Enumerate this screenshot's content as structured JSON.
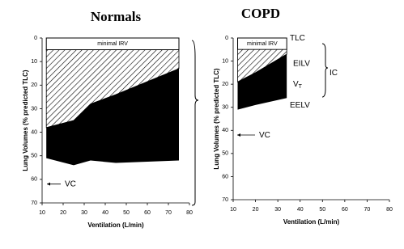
{
  "chart_data": [
    {
      "type": "area",
      "title": "Normals",
      "x_label": "Ventilation (L/min)",
      "y_label": "Lung Volumes (% predicted TLC)",
      "x": [
        12,
        25,
        33,
        45,
        75
      ],
      "series": [
        {
          "values": [
            38,
            35,
            28,
            24,
            13
          ]
        },
        {
          "values": [
            51,
            54,
            52,
            53,
            52
          ]
        }
      ],
      "irv_band": [
        0,
        5
      ],
      "irv_label": "minimal IRV",
      "xlim": [
        10,
        80
      ],
      "xticks": [
        10,
        20,
        30,
        40,
        50,
        60,
        70,
        80
      ],
      "ylim": [
        0,
        70
      ],
      "yticks": [
        0,
        10,
        20,
        30,
        40,
        50,
        60,
        70
      ],
      "y_inverted": true,
      "annotations": [
        {
          "text": "VC",
          "y": 62
        }
      ]
    },
    {
      "type": "area",
      "title": "COPD",
      "x_label": "Ventilation (L/min)",
      "y_label": "Lung Volumes (% predicted TLC)",
      "x": [
        12,
        20,
        34
      ],
      "series": [
        {
          "values": [
            19,
            15,
            7
          ]
        },
        {
          "values": [
            31,
            29,
            26
          ]
        }
      ],
      "irv_band": [
        0,
        5
      ],
      "irv_label": "minimal IRV",
      "xlim": [
        10,
        80
      ],
      "xticks": [
        10,
        20,
        30,
        40,
        50,
        60,
        70,
        80
      ],
      "ylim": [
        0,
        70
      ],
      "yticks": [
        0,
        10,
        20,
        30,
        40,
        50,
        60,
        70
      ],
      "y_inverted": true,
      "annotations": [
        {
          "text": "TLC",
          "y": 0
        },
        {
          "text": "EILV",
          "y": 11
        },
        {
          "text": "V",
          "sub": "T",
          "y": 20
        },
        {
          "text": "EELV",
          "y": 29
        },
        {
          "text": "IC",
          "y": 15
        },
        {
          "text": "VC",
          "y": 42
        }
      ]
    }
  ]
}
